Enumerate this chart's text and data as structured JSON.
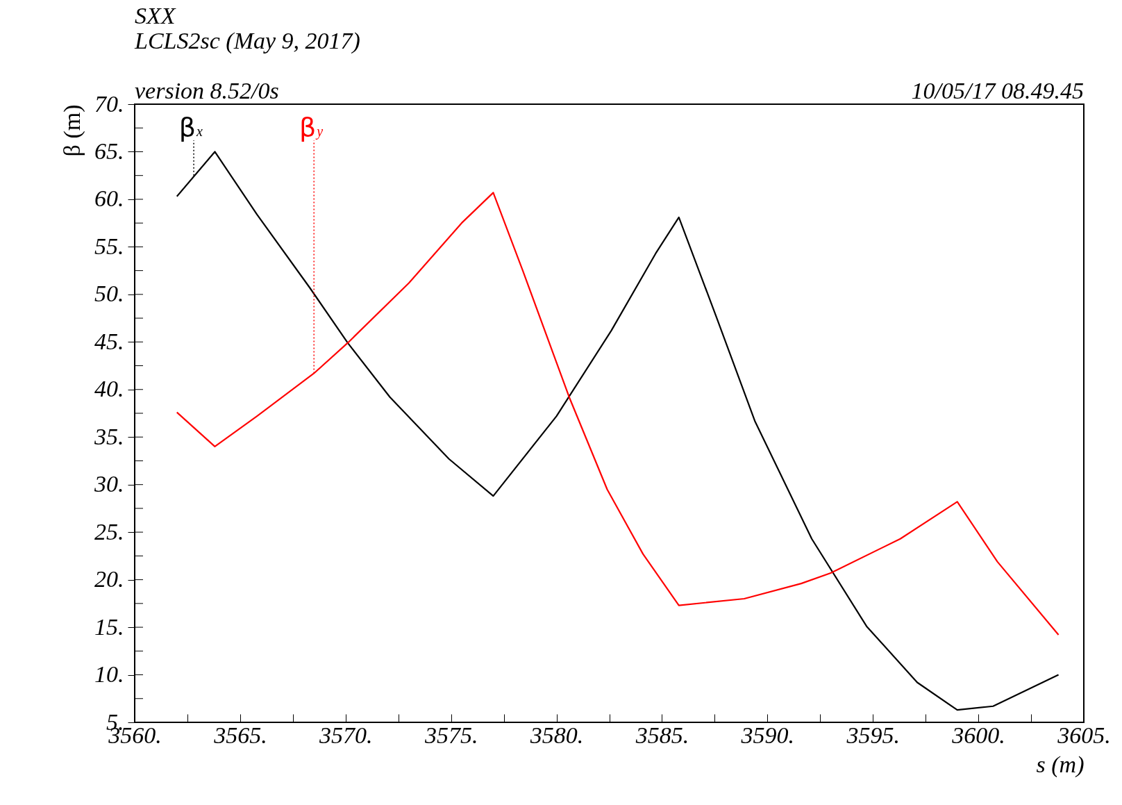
{
  "chart_data": {
    "type": "line",
    "title": "SXX",
    "subtitle": "LCLS2sc (May 9, 2017)",
    "xlabel": "s (m)",
    "ylabel": "β (m)",
    "annotations": [
      "version 8.52/0s",
      "10/05/17  08.49.45",
      {
        "text": "β$_{x}$",
        "x": 3562.8,
        "y": 62.5
      },
      {
        "text": "β$_{y}$",
        "x": 3568.5,
        "y": 41.7
      }
    ],
    "series": [
      {
        "color": "#000000",
        "x": [
          3562.0,
          3563.8,
          3565.8,
          3568.3,
          3570.1,
          3572.1,
          3574.9,
          3577.0,
          3580.0,
          3582.6,
          3584.7,
          3585.8,
          3587.6,
          3589.4,
          3592.1,
          3594.7,
          3597.1,
          3599.0,
          3600.7,
          3603.8
        ],
        "values": [
          60.3,
          65.0,
          58.4,
          50.7,
          44.9,
          39.2,
          32.7,
          28.8,
          37.2,
          46.2,
          54.3,
          58.1,
          47.5,
          36.7,
          24.3,
          15.1,
          9.2,
          6.3,
          6.7,
          10.0
        ]
      },
      {
        "color": "#ff0000",
        "x": [
          3562.0,
          3563.8,
          3565.8,
          3568.5,
          3570.1,
          3573.0,
          3575.5,
          3577.0,
          3578.4,
          3580.6,
          3582.4,
          3584.1,
          3585.8,
          3588.9,
          3591.6,
          3593.0,
          3596.3,
          3599.0,
          3600.9,
          3603.8
        ],
        "values": [
          37.6,
          34.0,
          37.2,
          41.7,
          44.9,
          51.2,
          57.5,
          60.7,
          52.5,
          39.2,
          29.5,
          22.7,
          17.3,
          18.0,
          19.6,
          20.7,
          24.3,
          28.2,
          21.9,
          14.2
        ]
      }
    ],
    "xlim": [
      3560,
      3605
    ],
    "xticks": [
      {
        "value": 3560,
        "label": "3560."
      },
      {
        "value": 3562.5,
        "label": null
      },
      {
        "value": 3565,
        "label": "3565."
      },
      {
        "value": 3567.5,
        "label": null
      },
      {
        "value": 3570,
        "label": "3570."
      },
      {
        "value": 3572.5,
        "label": null
      },
      {
        "value": 3575,
        "label": "3575."
      },
      {
        "value": 3577.5,
        "label": null
      },
      {
        "value": 3580,
        "label": "3580."
      },
      {
        "value": 3582.5,
        "label": null
      },
      {
        "value": 3585,
        "label": "3585."
      },
      {
        "value": 3587.5,
        "label": null
      },
      {
        "value": 3590,
        "label": "3590."
      },
      {
        "value": 3592.5,
        "label": null
      },
      {
        "value": 3595,
        "label": "3595."
      },
      {
        "value": 3597.5,
        "label": null
      },
      {
        "value": 3600,
        "label": "3600."
      },
      {
        "value": 3602.5,
        "label": null
      },
      {
        "value": 3605,
        "label": "3605."
      }
    ],
    "ylim": [
      5,
      70
    ],
    "yticks": [
      {
        "value": 5,
        "label": "5."
      },
      {
        "value": 7.5,
        "label": null
      },
      {
        "value": 10,
        "label": "10."
      },
      {
        "value": 12.5,
        "label": null
      },
      {
        "value": 15,
        "label": "15."
      },
      {
        "value": 17.5,
        "label": null
      },
      {
        "value": 20,
        "label": "20."
      },
      {
        "value": 22.5,
        "label": null
      },
      {
        "value": 25,
        "label": "25."
      },
      {
        "value": 27.5,
        "label": null
      },
      {
        "value": 30,
        "label": "30."
      },
      {
        "value": 32.5,
        "label": null
      },
      {
        "value": 35,
        "label": "35."
      },
      {
        "value": 37.5,
        "label": null
      },
      {
        "value": 40,
        "label": "40."
      },
      {
        "value": 42.5,
        "label": null
      },
      {
        "value": 45,
        "label": "45."
      },
      {
        "value": 47.5,
        "label": null
      },
      {
        "value": 50,
        "label": "50."
      },
      {
        "value": 52.5,
        "label": null
      },
      {
        "value": 55,
        "label": "55."
      },
      {
        "value": 57.5,
        "label": null
      },
      {
        "value": 60,
        "label": "60."
      },
      {
        "value": 62.5,
        "label": null
      },
      {
        "value": 65,
        "label": "65."
      },
      {
        "value": 67.5,
        "label": null
      },
      {
        "value": 70,
        "label": "70."
      }
    ],
    "grid": false
  }
}
